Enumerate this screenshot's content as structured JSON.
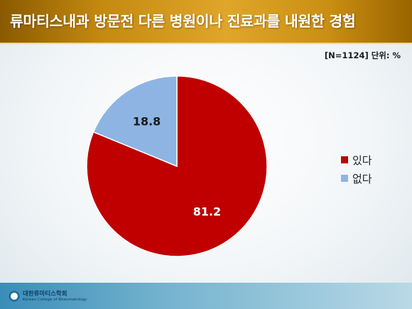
{
  "header": {
    "title": "류마티스내과 방문전 다른 병원이나 진료과를 내원한 경험"
  },
  "unit_note": "[N=1124] 단위: %",
  "footer": {
    "org_name": "대한류마티스학회",
    "org_name_en": "Korean College of Rheumatology"
  },
  "colors": {
    "있다": "#c00000",
    "없다": "#8eb4e3"
  },
  "chart_data": {
    "type": "pie",
    "categories": [
      "있다",
      "없다"
    ],
    "values": [
      81.2,
      18.8
    ],
    "data_labels": [
      "81.2",
      "18.8"
    ],
    "start": "12 o'clock",
    "direction": "clockwise",
    "legend": "right"
  }
}
